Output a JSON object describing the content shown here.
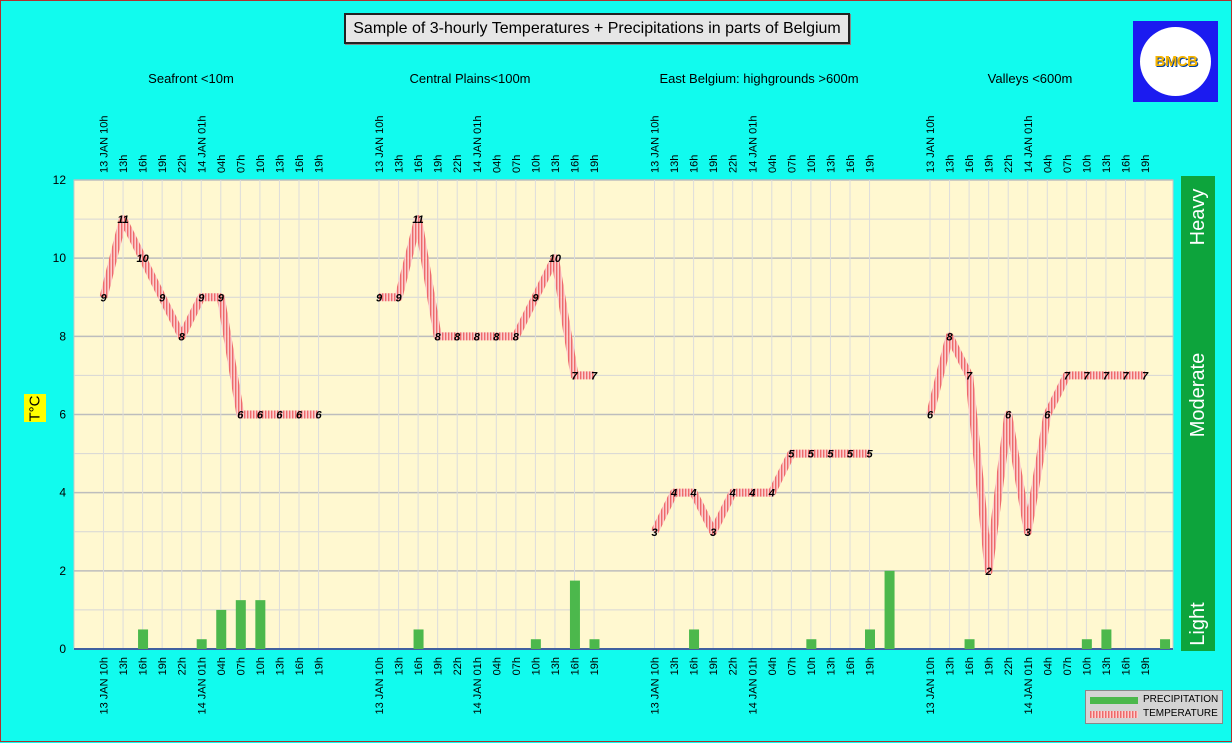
{
  "title": "Sample of 3-hourly Temperatures + Precipitations in parts of Belgium",
  "logo_text": "BMCB",
  "ylabel": "T°C",
  "colors": {
    "background": "#11fbee",
    "plot": "#fff8d0",
    "temperature": "#f08080",
    "precipitation": "#4cb84c",
    "intensity_band": "#0da43c"
  },
  "chart_data": {
    "type": "line",
    "ylim": [
      0,
      12
    ],
    "yticks": [
      "0",
      "2",
      "4",
      "6",
      "8",
      "10",
      "12"
    ],
    "grid": true,
    "x_labels_top": [
      "13 JAN 10h",
      "13h",
      "16h",
      "19h",
      "22h",
      "14 JAN 01h",
      "04h",
      "07h",
      "10h",
      "13h",
      "16h",
      "19h"
    ],
    "x_labels_bottom": [
      "13 JAN 10h",
      "13h",
      "16h",
      "19h",
      "22h",
      "14 JAN 01h",
      "04h",
      "07h",
      "10h",
      "13h",
      "16h",
      "19h"
    ],
    "groups": [
      {
        "name": "Seafront <10m",
        "temperature": [
          9,
          11,
          10,
          9,
          8,
          9,
          9,
          6,
          6,
          6,
          6,
          6
        ],
        "precipitation": [
          0,
          0.5,
          0,
          0,
          0.25,
          1,
          1.25,
          1.25,
          0,
          0,
          0,
          0
        ]
      },
      {
        "name": "Central Plains<100m",
        "temperature": [
          9,
          9,
          11,
          8,
          8,
          8,
          8,
          8,
          9,
          10,
          7,
          7
        ],
        "precipitation": [
          0,
          0.5,
          0,
          0,
          0,
          0,
          0,
          0.25,
          0,
          1.75,
          0.25,
          0
        ]
      },
      {
        "name": "East Belgium:     highgrounds >600m",
        "temperature": [
          3,
          4,
          4,
          3,
          4,
          4,
          4,
          5,
          5,
          5,
          5,
          5
        ],
        "precipitation": [
          0,
          0.5,
          0,
          0,
          0,
          0,
          0,
          0.25,
          0,
          0,
          0.5,
          2
        ]
      },
      {
        "name": "Valleys <600m",
        "temperature": [
          6,
          8,
          7,
          2,
          6,
          3,
          6,
          7,
          7,
          7,
          7,
          7
        ],
        "precipitation": [
          0,
          0.25,
          0,
          0,
          0,
          0,
          0,
          0.25,
          0.5,
          0,
          0,
          0.25
        ]
      }
    ],
    "intensity_labels": [
      "Heavy",
      "Moderate",
      "Light"
    ],
    "legend": {
      "placement": "bottom-right",
      "entries": [
        "PRECIPITATION",
        "TEMPERATURE"
      ]
    }
  }
}
